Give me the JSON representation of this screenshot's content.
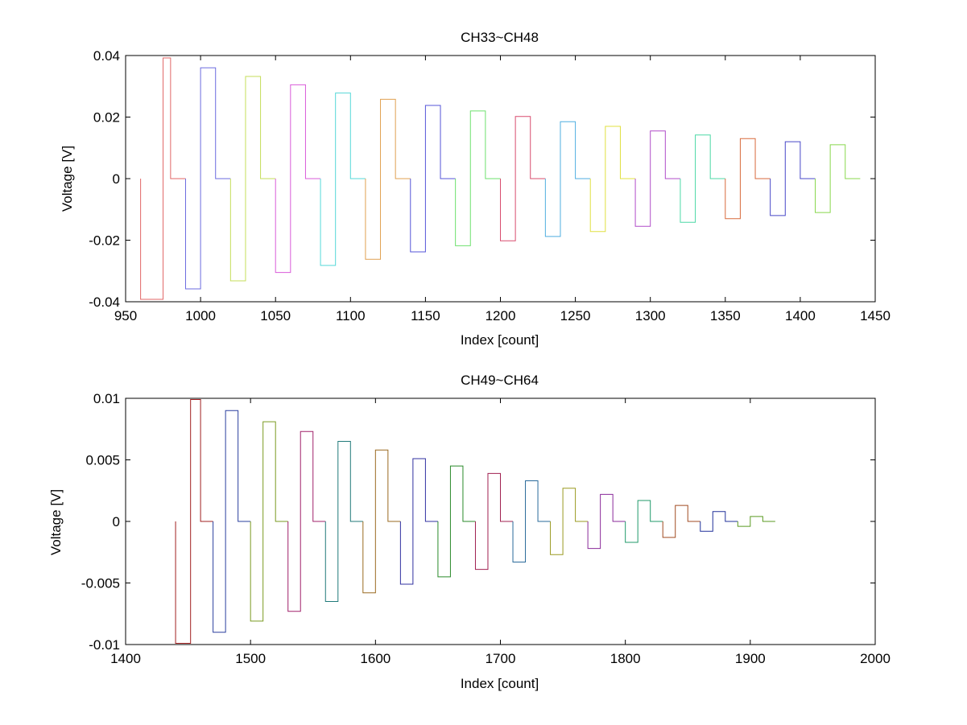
{
  "chart_data": [
    {
      "type": "line",
      "title": "CH33~CH48",
      "xlabel": "Index [count]",
      "ylabel": "Voltage [V]",
      "xlim": [
        950,
        1450
      ],
      "ylim": [
        -0.04,
        0.04
      ],
      "xticks": [
        950,
        1000,
        1050,
        1100,
        1150,
        1200,
        1250,
        1300,
        1350,
        1400,
        1450
      ],
      "yticks": [
        -0.04,
        -0.02,
        0,
        0.02,
        0.04
      ],
      "xtick_labels": [
        "950",
        "1000",
        "1050",
        "1100",
        "1150",
        "1200",
        "1250",
        "1300",
        "1350",
        "1400",
        "1450"
      ],
      "ytick_labels": [
        "-0.04",
        "-0.02",
        "0",
        "0.02",
        "0.04"
      ],
      "grid": false,
      "series": [
        {
          "color": "#e06666",
          "x": [
            960,
            960,
            961,
            975,
            975,
            976,
            980,
            980,
            990
          ],
          "y": [
            0,
            -0.0392,
            -0.0392,
            -0.0392,
            0.0392,
            0.0392,
            0.0392,
            0,
            0
          ]
        },
        {
          "color": "#6b6bdf",
          "x": [
            990,
            990,
            991,
            1000,
            1000,
            1005,
            1010,
            1010,
            1020
          ],
          "y": [
            0,
            -0.0358,
            -0.0358,
            -0.0358,
            0.036,
            0.036,
            0.036,
            0,
            0
          ]
        },
        {
          "color": "#c5de5a",
          "x": [
            1020,
            1020,
            1025,
            1030,
            1030,
            1035,
            1040,
            1040,
            1050
          ],
          "y": [
            0,
            -0.0332,
            -0.0332,
            -0.0332,
            0.0332,
            0.0332,
            0.0332,
            0,
            0
          ]
        },
        {
          "color": "#d95bd9",
          "x": [
            1050,
            1050,
            1055,
            1060,
            1060,
            1065,
            1070,
            1070,
            1080
          ],
          "y": [
            0,
            -0.0305,
            -0.0305,
            -0.0305,
            0.0305,
            0.0305,
            0.0305,
            0,
            0
          ]
        },
        {
          "color": "#55d8d8",
          "x": [
            1080,
            1080,
            1085,
            1090,
            1090,
            1095,
            1100,
            1100,
            1110
          ],
          "y": [
            0,
            -0.0282,
            -0.0282,
            -0.0282,
            0.0278,
            0.0278,
            0.0278,
            0,
            0
          ]
        },
        {
          "color": "#e0a050",
          "x": [
            1110,
            1110,
            1115,
            1120,
            1120,
            1125,
            1130,
            1130,
            1140
          ],
          "y": [
            0,
            -0.0262,
            -0.0262,
            -0.0262,
            0.0258,
            0.0258,
            0.0258,
            0,
            0
          ]
        },
        {
          "color": "#5555d8",
          "x": [
            1140,
            1140,
            1145,
            1150,
            1150,
            1155,
            1160,
            1160,
            1170
          ],
          "y": [
            0,
            -0.0238,
            -0.0238,
            -0.0238,
            0.0238,
            0.0238,
            0.0238,
            0,
            0
          ]
        },
        {
          "color": "#6de06d",
          "x": [
            1170,
            1170,
            1175,
            1180,
            1180,
            1185,
            1190,
            1190,
            1200
          ],
          "y": [
            0,
            -0.0218,
            -0.0218,
            -0.0218,
            0.022,
            0.022,
            0.022,
            0,
            0
          ]
        },
        {
          "color": "#d84c6e",
          "x": [
            1200,
            1200,
            1205,
            1210,
            1210,
            1215,
            1220,
            1220,
            1230
          ],
          "y": [
            0,
            -0.0202,
            -0.0202,
            -0.0202,
            0.0202,
            0.0202,
            0.0202,
            0,
            0
          ]
        },
        {
          "color": "#4faee0",
          "x": [
            1230,
            1230,
            1235,
            1240,
            1240,
            1245,
            1250,
            1250,
            1260
          ],
          "y": [
            0,
            -0.0188,
            -0.0188,
            -0.0188,
            0.0185,
            0.0185,
            0.0185,
            0,
            0
          ]
        },
        {
          "color": "#e0e040",
          "x": [
            1260,
            1260,
            1265,
            1270,
            1270,
            1275,
            1280,
            1280,
            1290
          ],
          "y": [
            0,
            -0.0172,
            -0.0172,
            -0.0172,
            0.017,
            0.017,
            0.017,
            0,
            0
          ]
        },
        {
          "color": "#b04cc8",
          "x": [
            1290,
            1290,
            1295,
            1300,
            1300,
            1305,
            1310,
            1310,
            1320
          ],
          "y": [
            0,
            -0.0155,
            -0.0155,
            -0.0155,
            0.0155,
            0.0155,
            0.0155,
            0,
            0
          ]
        },
        {
          "color": "#4cd8a6",
          "x": [
            1320,
            1320,
            1325,
            1330,
            1330,
            1335,
            1340,
            1340,
            1350
          ],
          "y": [
            0,
            -0.0142,
            -0.0142,
            -0.0142,
            0.0142,
            0.0142,
            0.0142,
            0,
            0
          ]
        },
        {
          "color": "#d86a3c",
          "x": [
            1350,
            1350,
            1355,
            1360,
            1360,
            1365,
            1370,
            1370,
            1380
          ],
          "y": [
            0,
            -0.013,
            -0.013,
            -0.013,
            0.013,
            0.013,
            0.013,
            0,
            0
          ]
        },
        {
          "color": "#4848c8",
          "x": [
            1380,
            1380,
            1385,
            1390,
            1390,
            1395,
            1400,
            1400,
            1410
          ],
          "y": [
            0,
            -0.012,
            -0.012,
            -0.012,
            0.012,
            0.012,
            0.012,
            0,
            0
          ]
        },
        {
          "color": "#88d84c",
          "x": [
            1410,
            1410,
            1415,
            1420,
            1420,
            1425,
            1430,
            1430,
            1440
          ],
          "y": [
            0,
            -0.011,
            -0.011,
            -0.011,
            0.011,
            0.011,
            0.011,
            0,
            0
          ]
        }
      ]
    },
    {
      "type": "line",
      "title": "CH49~CH64",
      "xlabel": "Index [count]",
      "ylabel": "Voltage [V]",
      "xlim": [
        1400,
        2000
      ],
      "ylim": [
        -0.01,
        0.01
      ],
      "xticks": [
        1400,
        1500,
        1600,
        1700,
        1800,
        1900,
        2000
      ],
      "yticks": [
        -0.01,
        -0.005,
        0,
        0.005,
        0.01
      ],
      "xtick_labels": [
        "1400",
        "1500",
        "1600",
        "1700",
        "1800",
        "1900",
        "2000"
      ],
      "ytick_labels": [
        "-0.01",
        "-0.005",
        "0",
        "0.005",
        "0.01"
      ],
      "grid": false,
      "series": [
        {
          "color": "#a02020",
          "x": [
            1440,
            1440,
            1442,
            1452,
            1452,
            1455,
            1460,
            1460,
            1470
          ],
          "y": [
            0,
            -0.0099,
            -0.0099,
            -0.0099,
            0.0099,
            0.0099,
            0.0099,
            0,
            0
          ]
        },
        {
          "color": "#2a3f9e",
          "x": [
            1470,
            1470,
            1472,
            1480,
            1480,
            1485,
            1490,
            1490,
            1500
          ],
          "y": [
            0,
            -0.009,
            -0.009,
            -0.009,
            0.009,
            0.009,
            0.009,
            0,
            0
          ]
        },
        {
          "color": "#7a9a20",
          "x": [
            1500,
            1500,
            1502,
            1510,
            1510,
            1515,
            1520,
            1520,
            1530
          ],
          "y": [
            0,
            -0.0081,
            -0.0081,
            -0.0081,
            0.0081,
            0.0081,
            0.0081,
            0,
            0
          ]
        },
        {
          "color": "#a0206a",
          "x": [
            1530,
            1530,
            1532,
            1540,
            1540,
            1545,
            1550,
            1550,
            1560
          ],
          "y": [
            0,
            -0.0073,
            -0.0073,
            -0.0073,
            0.0073,
            0.0073,
            0.0073,
            0,
            0
          ]
        },
        {
          "color": "#207a7a",
          "x": [
            1560,
            1560,
            1562,
            1570,
            1570,
            1575,
            1580,
            1580,
            1590
          ],
          "y": [
            0,
            -0.0065,
            -0.0065,
            -0.0065,
            0.0065,
            0.0065,
            0.0065,
            0,
            0
          ]
        },
        {
          "color": "#9a6a20",
          "x": [
            1590,
            1590,
            1592,
            1600,
            1600,
            1605,
            1610,
            1610,
            1620
          ],
          "y": [
            0,
            -0.0058,
            -0.0058,
            -0.0058,
            0.0058,
            0.0058,
            0.0058,
            0,
            0
          ]
        },
        {
          "color": "#3030a0",
          "x": [
            1620,
            1620,
            1622,
            1630,
            1630,
            1635,
            1640,
            1640,
            1650
          ],
          "y": [
            0,
            -0.0051,
            -0.0051,
            -0.0051,
            0.0051,
            0.0051,
            0.0051,
            0,
            0
          ]
        },
        {
          "color": "#2a8a2a",
          "x": [
            1650,
            1650,
            1652,
            1660,
            1660,
            1665,
            1670,
            1670,
            1680
          ],
          "y": [
            0,
            -0.0045,
            -0.0045,
            -0.0045,
            0.0045,
            0.0045,
            0.0045,
            0,
            0
          ]
        },
        {
          "color": "#a02050",
          "x": [
            1680,
            1680,
            1682,
            1690,
            1690,
            1695,
            1700,
            1700,
            1710
          ],
          "y": [
            0,
            -0.0039,
            -0.0039,
            -0.0039,
            0.0039,
            0.0039,
            0.0039,
            0,
            0
          ]
        },
        {
          "color": "#2a6a9a",
          "x": [
            1710,
            1710,
            1712,
            1720,
            1720,
            1725,
            1730,
            1730,
            1740
          ],
          "y": [
            0,
            -0.0033,
            -0.0033,
            -0.0033,
            0.0033,
            0.0033,
            0.0033,
            0,
            0
          ]
        },
        {
          "color": "#9a9a20",
          "x": [
            1740,
            1740,
            1742,
            1750,
            1750,
            1755,
            1760,
            1760,
            1770
          ],
          "y": [
            0,
            -0.0027,
            -0.0027,
            -0.0027,
            0.0027,
            0.0027,
            0.0027,
            0,
            0
          ]
        },
        {
          "color": "#8a2a9a",
          "x": [
            1770,
            1770,
            1772,
            1780,
            1780,
            1785,
            1790,
            1790,
            1800
          ],
          "y": [
            0,
            -0.0022,
            -0.0022,
            -0.0022,
            0.0022,
            0.0022,
            0.0022,
            0,
            0
          ]
        },
        {
          "color": "#209a6a",
          "x": [
            1800,
            1800,
            1802,
            1810,
            1810,
            1815,
            1820,
            1820,
            1830
          ],
          "y": [
            0,
            -0.0017,
            -0.0017,
            -0.0017,
            0.0017,
            0.0017,
            0.0017,
            0,
            0
          ]
        },
        {
          "color": "#a04a20",
          "x": [
            1830,
            1830,
            1832,
            1840,
            1840,
            1845,
            1850,
            1850,
            1860
          ],
          "y": [
            0,
            -0.0013,
            -0.0013,
            -0.0013,
            0.0013,
            0.0013,
            0.0013,
            0,
            0
          ]
        },
        {
          "color": "#20309a",
          "x": [
            1860,
            1860,
            1862,
            1870,
            1870,
            1875,
            1880,
            1880,
            1890
          ],
          "y": [
            0,
            -0.0008,
            -0.0008,
            -0.0008,
            0.0008,
            0.0008,
            0.0008,
            0,
            0
          ]
        },
        {
          "color": "#5a9a20",
          "x": [
            1890,
            1890,
            1892,
            1900,
            1900,
            1905,
            1910,
            1910,
            1920
          ],
          "y": [
            0,
            -0.0004,
            -0.0004,
            -0.0004,
            0.0004,
            0.0004,
            0.0004,
            0,
            0
          ]
        }
      ]
    }
  ]
}
